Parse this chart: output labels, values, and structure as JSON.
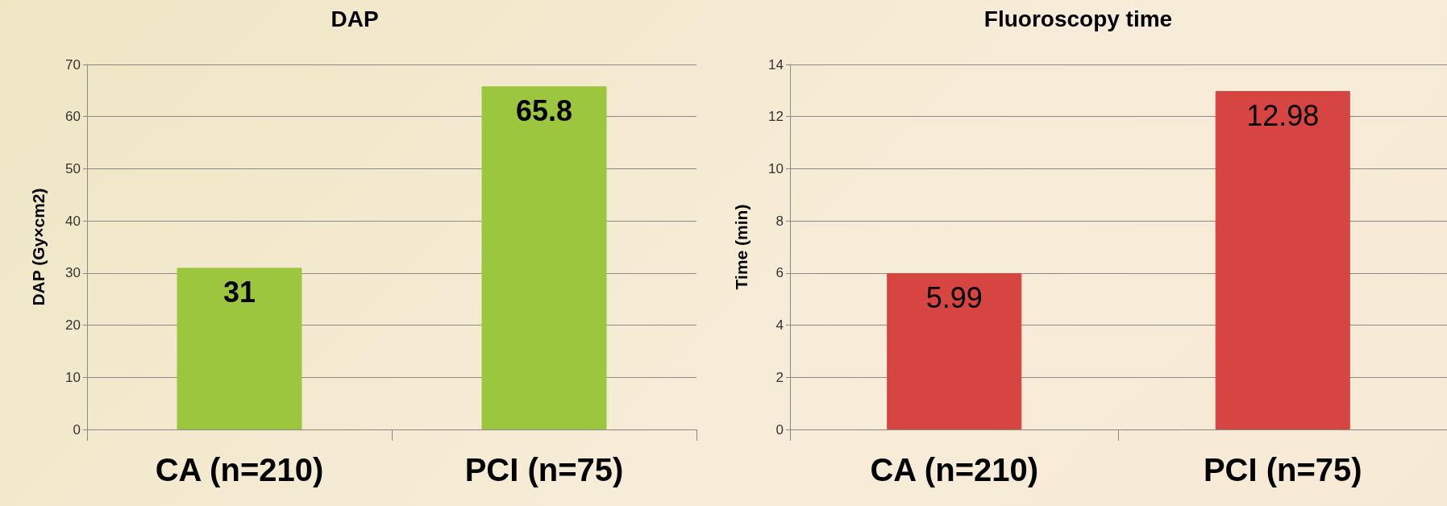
{
  "chart_data": [
    {
      "type": "bar",
      "title": "DAP",
      "ylabel": "DAP (Gy×cm2)",
      "categories": [
        "CA (n=210)",
        "PCI (n=75)"
      ],
      "values": [
        31,
        65.8
      ],
      "color": "#9cc63e",
      "ylim": [
        0,
        70
      ],
      "yticks": [
        0,
        10,
        20,
        30,
        40,
        50,
        60,
        70
      ],
      "grid": "y",
      "data_labels": true
    },
    {
      "type": "bar",
      "title": "Fluoroscopy time",
      "ylabel": "Time (min)",
      "categories": [
        "CA (n=210)",
        "PCI (n=75)"
      ],
      "values": [
        5.99,
        12.98
      ],
      "color": "#d64541",
      "ylim": [
        0,
        14
      ],
      "yticks": [
        0,
        2,
        4,
        6,
        8,
        10,
        12,
        14
      ],
      "grid": "y",
      "data_labels": true
    }
  ]
}
